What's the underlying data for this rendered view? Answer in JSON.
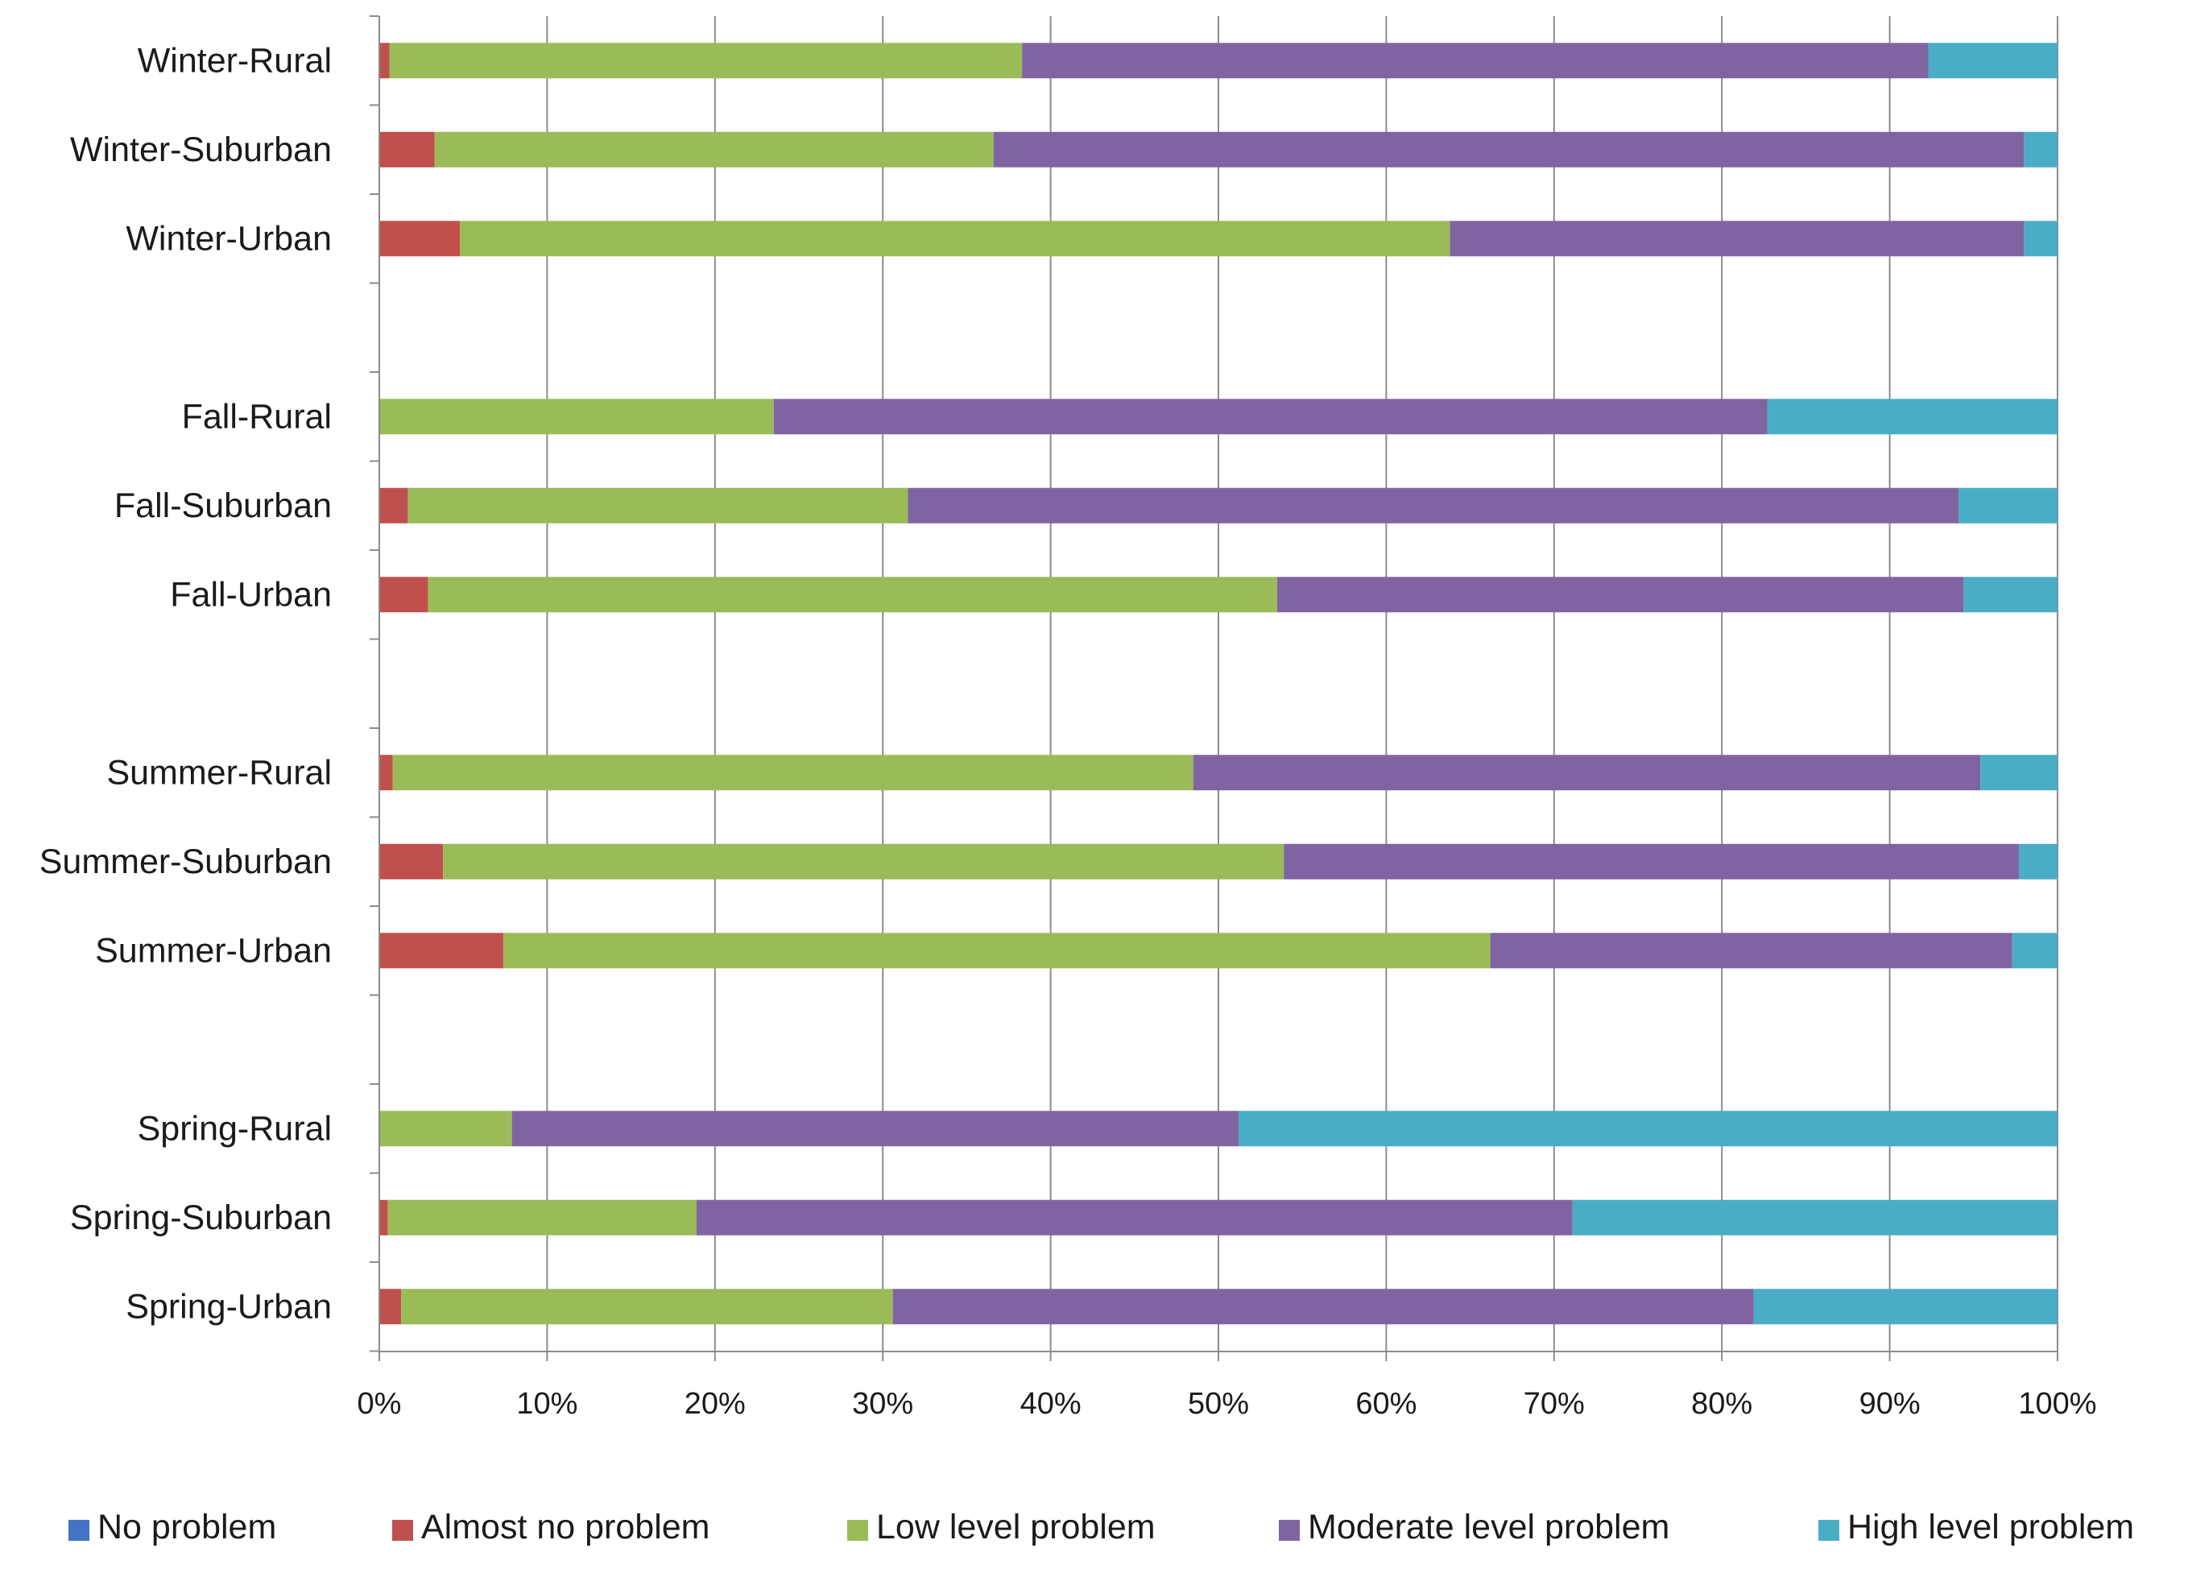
{
  "chart_data": {
    "type": "bar",
    "orientation": "horizontal",
    "stacked": "percent",
    "title": "",
    "xlabel": "",
    "ylabel": "",
    "xlim": [
      0,
      100
    ],
    "x_ticks": [
      "0%",
      "10%",
      "20%",
      "30%",
      "40%",
      "50%",
      "60%",
      "70%",
      "80%",
      "90%",
      "100%"
    ],
    "grid": "vertical",
    "legend_position": "bottom",
    "categories": [
      "Winter-Rural",
      "Winter-Suburban",
      "Winter-Urban",
      "",
      "Fall-Rural",
      "Fall-Suburban",
      "Fall-Urban",
      "",
      "Summer-Rural",
      "Summer-Suburban",
      "Summer-Urban",
      "",
      "Spring-Rural",
      "Spring-Suburban",
      "Spring-Urban"
    ],
    "series": [
      {
        "name": "No problem",
        "color": "#4472C4",
        "values": [
          0,
          0,
          0,
          null,
          0,
          0,
          0,
          null,
          0,
          0,
          0,
          null,
          0,
          0,
          0
        ]
      },
      {
        "name": "Almost no problem",
        "color": "#C0504D",
        "values": [
          0.6,
          3.3,
          4.8,
          null,
          0,
          1.7,
          2.9,
          null,
          0.8,
          3.8,
          7.4,
          null,
          0,
          0.5,
          1.3
        ]
      },
      {
        "name": "Low level problem",
        "color": "#9BBB59",
        "values": [
          37.7,
          33.3,
          59.0,
          null,
          23.5,
          29.8,
          50.6,
          null,
          47.7,
          50.1,
          58.8,
          null,
          7.9,
          18.4,
          29.3
        ]
      },
      {
        "name": "Moderate level problem",
        "color": "#8064A2",
        "values": [
          54.0,
          61.4,
          34.2,
          null,
          59.2,
          62.6,
          40.9,
          null,
          46.9,
          43.8,
          31.1,
          null,
          43.3,
          52.2,
          51.3
        ]
      },
      {
        "name": "High level problem",
        "color": "#4BACC6",
        "values": [
          7.7,
          2.0,
          2.0,
          null,
          17.3,
          5.9,
          5.6,
          null,
          4.6,
          2.3,
          2.7,
          null,
          48.8,
          28.9,
          18.1
        ]
      }
    ]
  }
}
